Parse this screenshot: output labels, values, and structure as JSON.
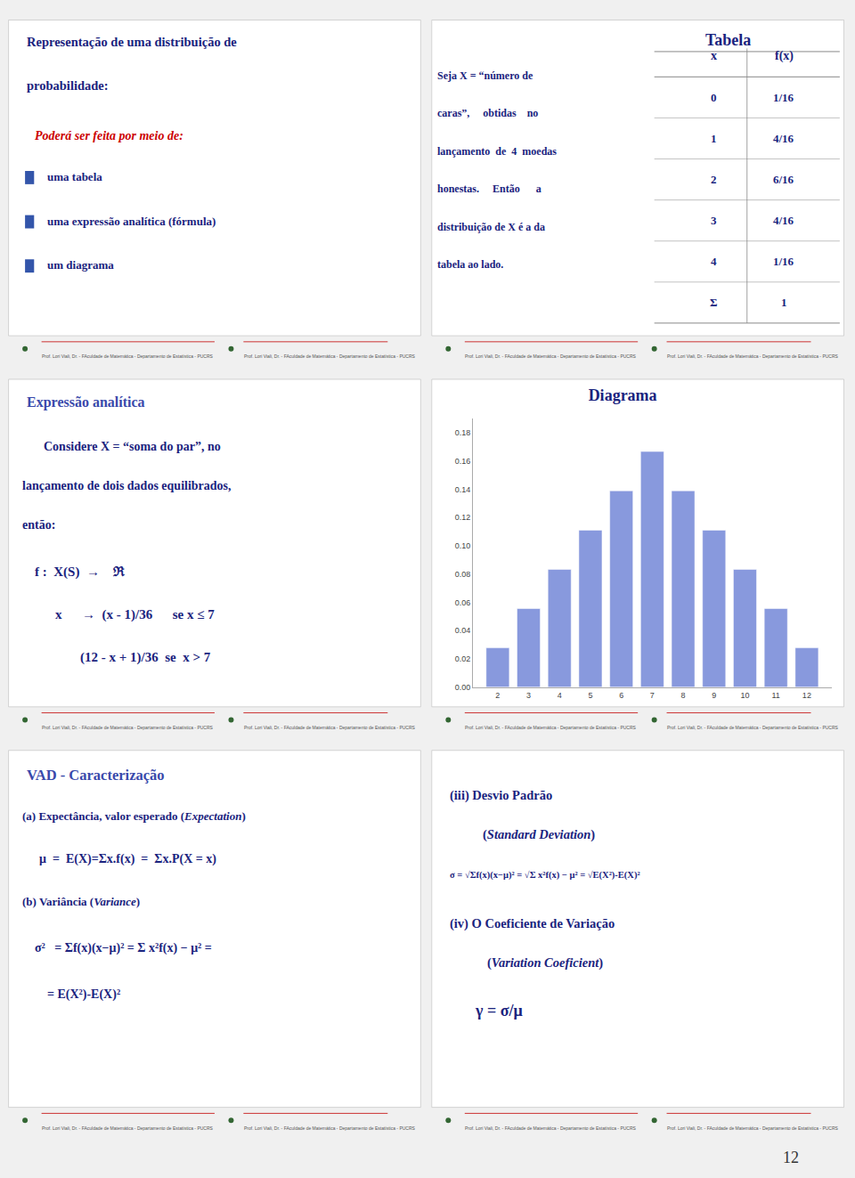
{
  "chart_data": {
    "type": "bar",
    "title": "Diagrama",
    "x": [
      2,
      3,
      4,
      5,
      6,
      7,
      8,
      9,
      10,
      11,
      12
    ],
    "values": [
      0.0278,
      0.0556,
      0.0833,
      0.1111,
      0.1389,
      0.1667,
      0.1389,
      0.1111,
      0.0833,
      0.0556,
      0.0278
    ],
    "color": "#8899dd",
    "xlim": [
      1.2,
      12.8
    ],
    "xticks": [
      2,
      3,
      4,
      5,
      6,
      7,
      8,
      9,
      10,
      11,
      12
    ],
    "ylim": [
      0,
      0.19
    ],
    "yticks": [
      {
        "value": 0,
        "label": "0.00"
      },
      0.02,
      0.04,
      0.06,
      0.08,
      {
        "value": 0.1,
        "label": "0.10"
      },
      0.12,
      0.14,
      0.16,
      0.18
    ],
    "grid": true,
    "annotations": [
      "Representação de uma distribuição de",
      "probabilidade:",
      "Poderá ser feita por meio de:",
      "uma tabela",
      "uma expressão analítica (fórmula)",
      "um diagrama",
      "Tabela",
      "Seja X = “número de",
      "caras”,     obtidas    no",
      "lançamento  de  4  moedas",
      "honestas.     Então      a",
      "distribuição de X é a da",
      "tabela ao lado.",
      "x",
      "f(x)",
      "0",
      "1/16",
      "1",
      "4/16",
      "2",
      "6/16",
      "3",
      "4/16",
      "4",
      "1/16",
      "Σ",
      "1",
      "Expressão analítica",
      "Considere X = “soma do par”, no",
      "lançamento de dois dados equilibrados,",
      "então:",
      "f :  X(S)  →    ℜ",
      "x      →  (x - 1)/36      se x ≤ 7",
      "(12 - x + 1)/36  se  x > 7",
      "VAD - Caracterização",
      "(a) Expectância, valor esperado (",
      "Expectation",
      ")",
      "μ  =  E(X)=Σx.f(x)  =  Σx.P(X = x)",
      "(b) Variância (",
      "Variance",
      ")",
      "σ²   = Σf(x)(x−μ)² = Σ x²f(x) − μ² =",
      "= E(X²)-E(X)²",
      "(iii) Desvio Padrão",
      "(",
      "Standard Deviation",
      ")",
      "σ = √Σf(x)(x−μ)² = √Σ x²f(x) − μ² = √E(X²)-E(X)²",
      "(iv) O Coeficiente de Variação",
      "(",
      "Variation Coeficient",
      ")",
      "γ = σ/μ",
      "12",
      "Prof. Lori Viali, Dr. - FAculdade de Matemática - Departamento de Estatística - PUCRS"
    ]
  }
}
